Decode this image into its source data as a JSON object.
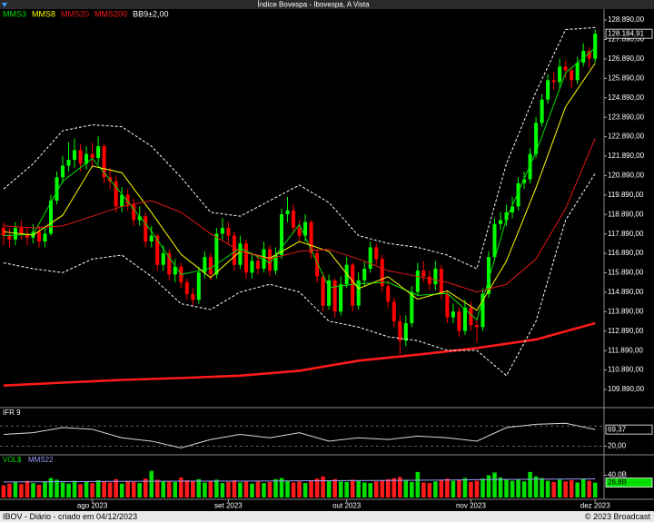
{
  "chart_data": [
    {
      "type": "candlestick",
      "title": "Índice Bovespa - Ibovespa, A Vista",
      "up_color": "#00ff00",
      "down_color": "#ff0000",
      "last_label": "128.184,91",
      "open": [
        118200,
        117800,
        117600,
        118200,
        117900,
        117700,
        118000,
        117500,
        117900,
        119600,
        120800,
        121400,
        121700,
        122200,
        121500,
        122000,
        121800,
        122400,
        120800,
        120600,
        119300,
        119900,
        119400,
        118600,
        118800,
        117500,
        117800,
        116300,
        116900,
        115800,
        116200,
        115400,
        114800,
        114500,
        115900,
        116700,
        115800,
        117900,
        118200,
        117800,
        116300,
        117400,
        115900,
        116500,
        116100,
        117100,
        116000,
        116800,
        118900,
        119100,
        118200,
        117800,
        118500,
        116900,
        115700,
        114200,
        115500,
        113900,
        115300,
        116300,
        114200,
        115500,
        116100,
        117200,
        116600,
        115200,
        114400,
        113400,
        112400,
        113300,
        114900,
        116000,
        115700,
        115300,
        116100,
        114800,
        113600,
        113900,
        112900,
        114100,
        113200,
        113100,
        114800,
        116700,
        118400,
        118600,
        119000,
        119300,
        120500,
        120700,
        122000,
        123600,
        124800,
        125800,
        125700,
        126500,
        126300,
        125800,
        126700,
        127300,
        126900
      ],
      "high": [
        118500,
        118200,
        118500,
        118600,
        118200,
        118400,
        118300,
        118300,
        119900,
        121100,
        121900,
        122600,
        122800,
        122500,
        122400,
        122600,
        122900,
        122500,
        121300,
        120900,
        120300,
        120200,
        119700,
        119300,
        119000,
        118300,
        117900,
        117300,
        117100,
        116600,
        116400,
        115600,
        115100,
        116200,
        117000,
        116900,
        118200,
        118700,
        118500,
        118000,
        117800,
        117600,
        116900,
        116800,
        117500,
        117300,
        117200,
        119200,
        119800,
        119400,
        118600,
        118900,
        118600,
        117100,
        115900,
        115800,
        115600,
        115700,
        116700,
        116400,
        115900,
        116500,
        117500,
        117400,
        116800,
        115500,
        114600,
        113700,
        113700,
        115200,
        116400,
        116500,
        116000,
        116500,
        116300,
        115000,
        114300,
        114100,
        114500,
        114400,
        113600,
        115100,
        117000,
        118700,
        119000,
        119400,
        119800,
        120800,
        121100,
        122300,
        123900,
        125100,
        126100,
        126200,
        126900,
        126800,
        126500,
        127000,
        127700,
        127500,
        128400
      ],
      "low": [
        117300,
        117200,
        117300,
        117600,
        117300,
        117400,
        117200,
        117200,
        117800,
        119400,
        120500,
        121100,
        121300,
        121100,
        121200,
        121400,
        121500,
        120500,
        120200,
        119000,
        119000,
        119100,
        118300,
        118300,
        117200,
        117200,
        116000,
        116000,
        115500,
        115400,
        115100,
        114500,
        114200,
        114300,
        115600,
        115500,
        115600,
        117600,
        117400,
        116000,
        116100,
        115600,
        115600,
        115800,
        115900,
        115700,
        115800,
        116600,
        118500,
        117900,
        117500,
        117500,
        116600,
        115400,
        113900,
        114000,
        113600,
        113700,
        115100,
        113900,
        114000,
        115200,
        115900,
        116300,
        114900,
        114100,
        113100,
        111700,
        112100,
        113100,
        114700,
        115400,
        115000,
        115000,
        114500,
        113300,
        113300,
        112600,
        112700,
        112900,
        112300,
        112900,
        114600,
        116500,
        118100,
        118300,
        118700,
        119100,
        120200,
        120500,
        121800,
        123400,
        124600,
        125300,
        125400,
        125900,
        125400,
        125600,
        126500,
        126400,
        126700
      ],
      "close": [
        117800,
        117600,
        118200,
        117900,
        117700,
        118000,
        117500,
        117900,
        119600,
        120800,
        121400,
        121700,
        122200,
        121500,
        122000,
        121800,
        122400,
        120800,
        120600,
        119300,
        119900,
        119400,
        118600,
        118800,
        117500,
        117800,
        116300,
        116900,
        115800,
        116200,
        115400,
        114800,
        114500,
        115900,
        116700,
        115800,
        117900,
        118200,
        117800,
        116300,
        117400,
        115900,
        116500,
        116100,
        117100,
        116000,
        116800,
        118900,
        119100,
        118200,
        117800,
        118500,
        116900,
        115700,
        114200,
        115500,
        113900,
        115300,
        116300,
        114200,
        115500,
        116100,
        117200,
        116600,
        115200,
        114400,
        113400,
        112400,
        113300,
        114900,
        116000,
        115700,
        115300,
        116100,
        114800,
        113600,
        113900,
        112900,
        114100,
        113200,
        113100,
        114800,
        116700,
        118400,
        118600,
        119000,
        119300,
        120500,
        120700,
        122000,
        123600,
        124800,
        125800,
        125700,
        126500,
        126300,
        125800,
        126700,
        127300,
        126900,
        128184.91
      ],
      "series": [
        {
          "name": "MMS3",
          "color": "#00e000",
          "x": [
            0,
            5,
            10,
            15,
            20,
            25,
            30,
            35,
            40,
            45,
            50,
            55,
            60,
            65,
            70,
            75,
            80,
            85,
            90,
            95,
            100
          ],
          "values": [
            117800,
            117870,
            120600,
            121770,
            119930,
            118030,
            115800,
            116130,
            117170,
            116400,
            118370,
            115130,
            115330,
            115400,
            114730,
            114830,
            113470,
            118670,
            122100,
            126170,
            127460
          ]
        },
        {
          "name": "MMS8",
          "color": "#ffff00",
          "x": [
            0,
            5,
            10,
            15,
            20,
            25,
            30,
            35,
            40,
            45,
            50,
            55,
            60,
            65,
            70,
            75,
            80,
            85,
            90,
            95,
            100
          ],
          "values": [
            118000,
            117830,
            118850,
            121380,
            121040,
            118990,
            116840,
            115640,
            117000,
            116640,
            117500,
            116990,
            115080,
            115690,
            114530,
            114960,
            113960,
            116490,
            120260,
            124430,
            126670
          ]
        },
        {
          "name": "MMS20",
          "color": "#e01818",
          "x": [
            0,
            5,
            10,
            15,
            20,
            25,
            30,
            35,
            40,
            45,
            50,
            55,
            60,
            65,
            70,
            75,
            80,
            85,
            90,
            95,
            100
          ],
          "values": [
            118300,
            118200,
            118300,
            118800,
            119300,
            119600,
            119000,
            117900,
            117000,
            116600,
            117000,
            117100,
            116600,
            116000,
            115700,
            115400,
            114900,
            115300,
            116600,
            119200,
            122800
          ]
        },
        {
          "name": "MMS200",
          "color": "#ff1a1a",
          "x": [
            0,
            10,
            20,
            30,
            40,
            50,
            60,
            70,
            80,
            90,
            100
          ],
          "values": [
            110090,
            110240,
            110380,
            110480,
            110600,
            110850,
            111370,
            111680,
            112020,
            112460,
            113300
          ]
        },
        {
          "name": "BB9±2,00",
          "color": "#ffffff",
          "x": [
            0,
            5,
            10,
            15,
            20,
            25,
            30,
            35,
            40,
            45,
            50,
            55,
            60,
            65,
            70,
            75,
            80,
            85,
            90,
            95,
            100
          ],
          "upper": [
            120200,
            121500,
            123200,
            123500,
            123400,
            122400,
            120800,
            119000,
            118800,
            119600,
            120400,
            119500,
            117800,
            117400,
            117200,
            116800,
            116100,
            121500,
            125200,
            128400,
            128500
          ],
          "lower": [
            116400,
            116100,
            115900,
            116600,
            116800,
            115700,
            114300,
            114000,
            114900,
            115300,
            114900,
            113400,
            113100,
            112600,
            112400,
            111900,
            111900,
            110600,
            113400,
            118600,
            121000
          ]
        }
      ],
      "xlim": [
        -0.6,
        101.5
      ],
      "xticks": [
        {
          "value": 15,
          "label": "ago 2023"
        },
        {
          "value": 38,
          "label": "set 2023"
        },
        {
          "value": 58,
          "label": "out 2023"
        },
        {
          "value": 79,
          "label": "nov 2023"
        },
        {
          "value": 100,
          "label": "dez 2023"
        }
      ],
      "ylim": [
        109050,
        129360
      ],
      "yticks": [
        {
          "value": 109890,
          "label": "109.890,00"
        },
        {
          "value": 110890,
          "label": "110.890,00"
        },
        {
          "value": 111890,
          "label": "111.890,00"
        },
        {
          "value": 112890,
          "label": "112.890,00"
        },
        {
          "value": 113890,
          "label": "113.890,00"
        },
        {
          "value": 114890,
          "label": "114.890,00"
        },
        {
          "value": 115890,
          "label": "115.890,00"
        },
        {
          "value": 116890,
          "label": "116.890,00"
        },
        {
          "value": 117890,
          "label": "117.890,00"
        },
        {
          "value": 118890,
          "label": "118.890,00"
        },
        {
          "value": 119890,
          "label": "119.890,00"
        },
        {
          "value": 120890,
          "label": "120.890,00"
        },
        {
          "value": 121890,
          "label": "121.890,00"
        },
        {
          "value": 122890,
          "label": "122.890,00"
        },
        {
          "value": 123890,
          "label": "123.890,00"
        },
        {
          "value": 124890,
          "label": "124.890,00"
        },
        {
          "value": 125890,
          "label": "125.890,00"
        },
        {
          "value": 126890,
          "label": "126.890,00"
        },
        {
          "value": 127890,
          "label": "127.890,00"
        },
        {
          "value": 128890,
          "label": "128.890,00"
        }
      ]
    },
    {
      "type": "line",
      "title": "IFR 9",
      "color": "#d8d8d8",
      "x": [
        0,
        5,
        10,
        15,
        20,
        25,
        30,
        35,
        40,
        45,
        50,
        55,
        60,
        65,
        70,
        75,
        80,
        85,
        90,
        95,
        100
      ],
      "values": [
        55,
        60,
        75,
        70,
        45,
        35,
        15,
        40,
        55,
        45,
        60,
        35,
        45,
        40,
        50,
        45,
        35,
        75,
        85,
        88,
        69.37
      ],
      "last_label": "69,37",
      "levels": [
        20,
        80
      ],
      "xlim": [
        -0.6,
        101.5
      ],
      "ylim": [
        0,
        110
      ],
      "yticks": [
        {
          "value": 20,
          "label": "20,00"
        }
      ]
    },
    {
      "type": "bar",
      "title": "VOL$",
      "values": [
        22,
        25,
        28,
        24,
        30,
        26,
        23,
        29,
        35,
        32,
        27,
        25,
        30,
        24,
        28,
        26,
        31,
        29,
        27,
        33,
        25,
        30,
        28,
        26,
        34,
        48,
        32,
        29,
        30,
        28,
        36,
        31,
        29,
        33,
        27,
        30,
        32,
        26,
        28,
        31,
        27,
        30,
        25,
        29,
        26,
        28,
        33,
        35,
        30,
        27,
        29,
        26,
        31,
        34,
        38,
        30,
        33,
        29,
        28,
        32,
        30,
        27,
        26,
        29,
        31,
        33,
        35,
        37,
        32,
        28,
        46,
        27,
        26,
        29,
        31,
        34,
        30,
        32,
        35,
        28,
        30,
        34,
        40,
        45,
        36,
        32,
        30,
        33,
        29,
        46,
        38,
        35,
        30,
        28,
        32,
        29,
        31,
        27,
        33,
        30,
        26.8
      ],
      "last_label": "26,8B",
      "up_color": "#00e000",
      "down_color": "#ff1a1a",
      "series": [
        {
          "name": "MMS22",
          "color": "#9a9aff",
          "x": [
            0,
            10,
            20,
            30,
            40,
            50,
            60,
            70,
            80,
            90,
            100
          ],
          "values": [
            28,
            28.5,
            29,
            29.5,
            29.5,
            30,
            30.5,
            31,
            32,
            33,
            33.5
          ]
        }
      ],
      "xlim": [
        -0.6,
        101.5
      ],
      "ylim": [
        0,
        73.6
      ],
      "yticks": [
        {
          "value": 40,
          "label": "40,0B"
        }
      ]
    }
  ],
  "footer": {
    "left": "IBOV - Diário - criado em 04/12/2023",
    "right": "© 2023 Broadcast"
  }
}
